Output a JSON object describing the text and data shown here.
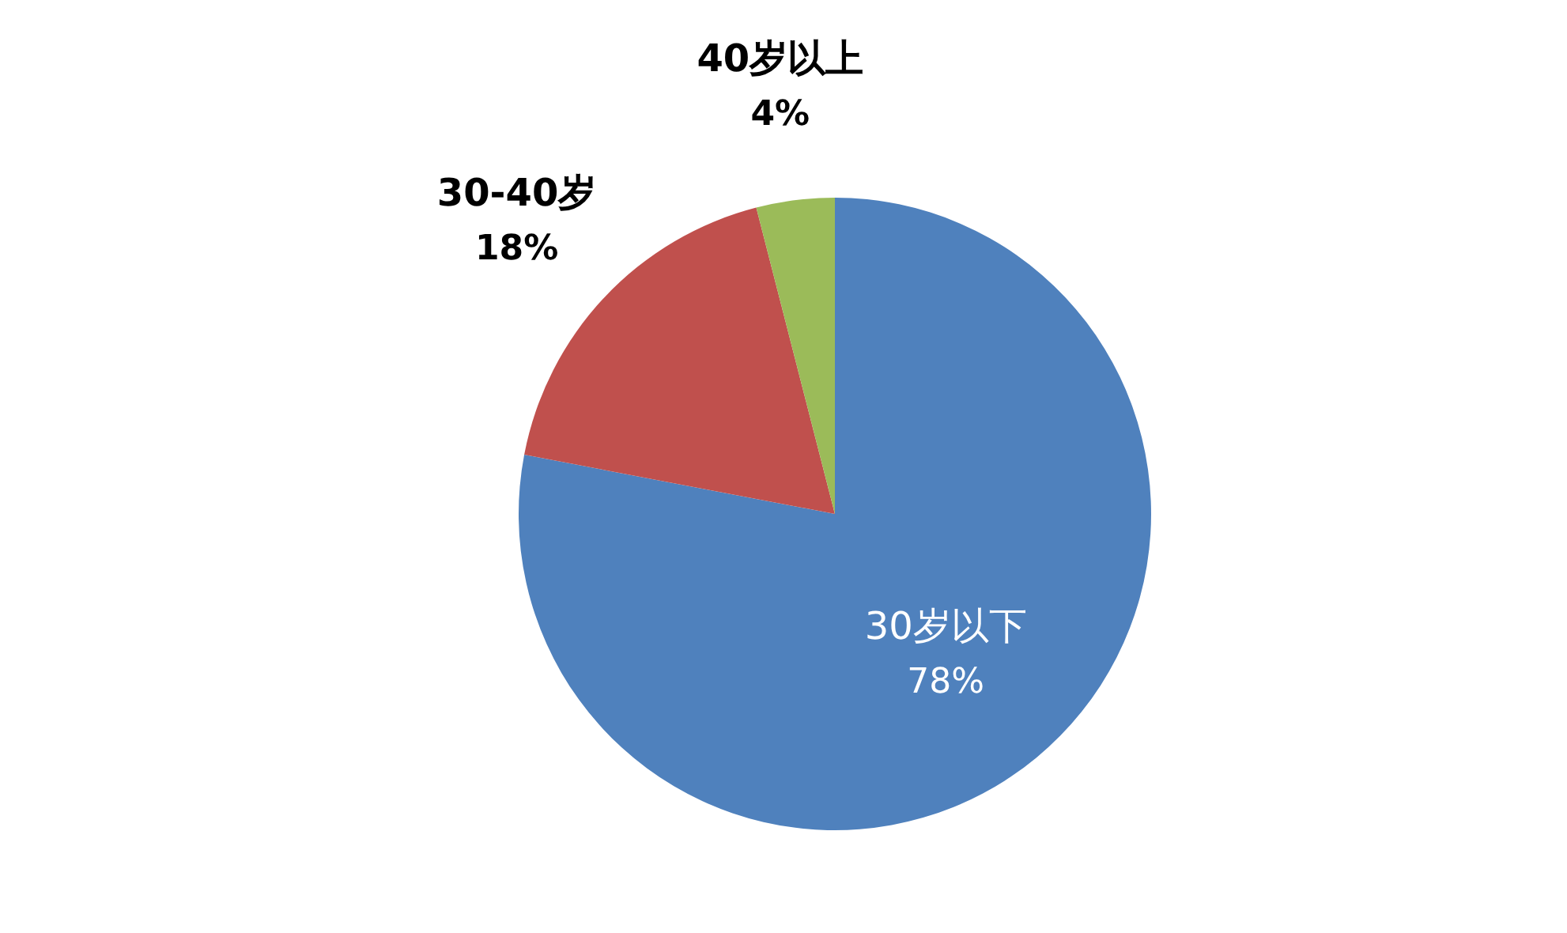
{
  "chart_data": {
    "type": "pie",
    "categories": [
      "30岁以下",
      "30-40岁",
      "40岁以上"
    ],
    "values": [
      78,
      18,
      4
    ],
    "colors": [
      "#4f81bd",
      "#c0504d",
      "#9bbb59"
    ],
    "value_labels": [
      "78%",
      "18%",
      "4%"
    ]
  }
}
